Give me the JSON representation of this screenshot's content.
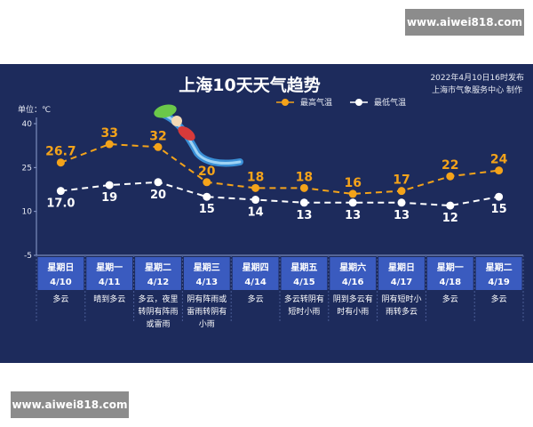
{
  "watermark_top": "www.aiwei818.com",
  "watermark_bottom": "www.aiwei818.com",
  "colors": {
    "panel_bg": "#1d2b5c",
    "header_row": "#3a5bbf",
    "high": "#f4a31a",
    "low": "#ffffff"
  },
  "chart_data": {
    "type": "line",
    "title": "上海10天天气趋势",
    "publish_info": "2022年4月10日16时发布",
    "publisher": "上海市气象服务中心 制作",
    "ylabel": "单位：℃",
    "ylim": [
      -5,
      40
    ],
    "yticks": [
      -5,
      10,
      25,
      40
    ],
    "legend_position": "top-right",
    "days": [
      "星期日",
      "星期一",
      "星期二",
      "星期三",
      "星期四",
      "星期五",
      "星期六",
      "星期日",
      "星期一",
      "星期二"
    ],
    "dates": [
      "4/10",
      "4/11",
      "4/12",
      "4/13",
      "4/14",
      "4/15",
      "4/16",
      "4/17",
      "4/18",
      "4/19"
    ],
    "weather": [
      [
        "多云"
      ],
      [
        "晴到多云"
      ],
      [
        "多云，夜里",
        "转阴有阵雨",
        "或雷雨"
      ],
      [
        "阴有阵雨或",
        "雷雨转阴有",
        "小雨"
      ],
      [
        "多云"
      ],
      [
        "多云转阴有",
        "短时小雨"
      ],
      [
        "阴到多云有",
        "时有小雨"
      ],
      [
        "阴有短时小",
        "雨转多云"
      ],
      [
        "多云"
      ],
      [
        "多云"
      ]
    ],
    "series": [
      {
        "name": "最高气温",
        "values": [
          26.7,
          33,
          32,
          20,
          18,
          18,
          16,
          17,
          22,
          24
        ],
        "labels": [
          "26.7",
          "33",
          "32",
          "20",
          "18",
          "18",
          "16",
          "17",
          "22",
          "24"
        ]
      },
      {
        "name": "最低气温",
        "values": [
          17.0,
          19,
          20,
          15,
          14,
          13,
          13,
          13,
          12,
          15
        ],
        "labels": [
          "17.0",
          "19",
          "20",
          "15",
          "14",
          "13",
          "13",
          "13",
          "12",
          "15"
        ]
      }
    ]
  }
}
